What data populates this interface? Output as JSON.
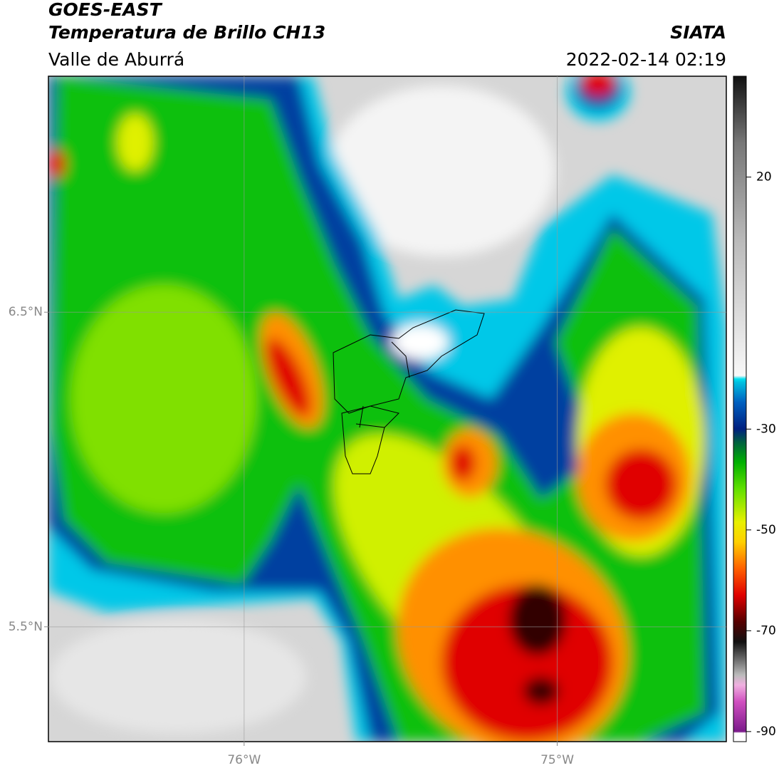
{
  "header": {
    "title": "GOES-EAST",
    "subtitle": "Temperatura de Brillo CH13",
    "region": "Valle de Aburrá",
    "source": "SIATA",
    "datetime": "2022-02-14 02:19"
  },
  "map": {
    "lonlim": [
      -76.625,
      -74.46
    ],
    "latlim": [
      5.135,
      7.25
    ],
    "grid": true,
    "lon_ticks": [
      {
        "value": -76,
        "label": "76°W"
      },
      {
        "value": -75,
        "label": "75°W"
      }
    ],
    "lat_ticks": [
      {
        "value": 6.5,
        "label": "6.5°N"
      },
      {
        "value": 5.5,
        "label": "5.5°N"
      }
    ]
  },
  "colorbar": {
    "lim": [
      -92,
      40
    ],
    "ticks": [
      20,
      -30,
      -50,
      -70,
      -90
    ]
  }
}
